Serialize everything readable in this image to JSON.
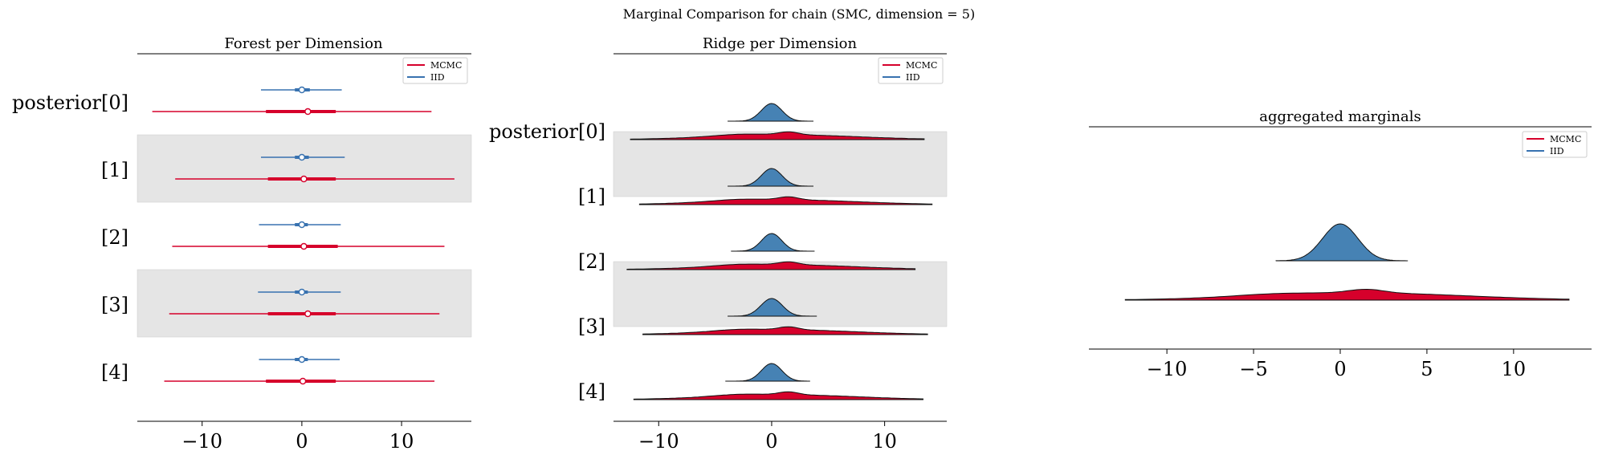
{
  "figure": {
    "suptitle": "Marginal Comparison for chain (SMC, dimension = 5)"
  },
  "colors": {
    "mcmc": "#d6002b",
    "iid": "#3872b0",
    "iid_fill": "#4682b4",
    "band": "#e5e5e5"
  },
  "legend": {
    "items": [
      "MCMC",
      "IID"
    ]
  },
  "y_labels": [
    "posterior[0]",
    "[1]",
    "[2]",
    "[3]",
    "[4]"
  ],
  "chart_data": [
    {
      "type": "forest",
      "title": "Forest per Dimension",
      "xlim": [
        -16.5,
        17
      ],
      "xticks": [
        -10,
        0,
        10
      ],
      "xtick_labels": [
        "−10",
        "0",
        "10"
      ],
      "series": [
        {
          "name": "MCMC",
          "rows": [
            {
              "label": "posterior[0]",
              "median": 0.6,
              "iqr": [
                -3.6,
                3.4
              ],
              "range": [
                -15.0,
                13.0
              ]
            },
            {
              "label": "[1]",
              "median": 0.2,
              "iqr": [
                -3.4,
                3.4
              ],
              "range": [
                -12.7,
                15.3
              ]
            },
            {
              "label": "[2]",
              "median": 0.2,
              "iqr": [
                -3.4,
                3.6
              ],
              "range": [
                -13.0,
                14.3
              ]
            },
            {
              "label": "[3]",
              "median": 0.6,
              "iqr": [
                -3.4,
                3.4
              ],
              "range": [
                -13.3,
                13.8
              ]
            },
            {
              "label": "[4]",
              "median": 0.1,
              "iqr": [
                -3.6,
                3.4
              ],
              "range": [
                -13.8,
                13.3
              ]
            }
          ]
        },
        {
          "name": "IID",
          "rows": [
            {
              "label": "posterior[0]",
              "median": 0.0,
              "iqr": [
                -0.7,
                0.8
              ],
              "range": [
                -4.1,
                4.0
              ]
            },
            {
              "label": "[1]",
              "median": 0.0,
              "iqr": [
                -0.7,
                0.7
              ],
              "range": [
                -4.1,
                4.3
              ]
            },
            {
              "label": "[2]",
              "median": 0.0,
              "iqr": [
                -0.7,
                0.6
              ],
              "range": [
                -4.3,
                3.9
              ]
            },
            {
              "label": "[3]",
              "median": 0.0,
              "iqr": [
                -0.7,
                0.6
              ],
              "range": [
                -4.4,
                3.9
              ]
            },
            {
              "label": "[4]",
              "median": 0.0,
              "iqr": [
                -0.7,
                0.6
              ],
              "range": [
                -4.3,
                3.8
              ]
            }
          ]
        }
      ]
    },
    {
      "type": "ridge",
      "title": "Ridge per Dimension",
      "xlim": [
        -14,
        15.5
      ],
      "xticks": [
        -10,
        0,
        10
      ],
      "xtick_labels": [
        "−10",
        "0",
        "10"
      ],
      "series": [
        {
          "name": "IID",
          "rows": [
            {
              "label": "posterior[0]",
              "range": [
                -3.9,
                3.7
              ]
            },
            {
              "label": "[1]",
              "range": [
                -3.9,
                3.7
              ]
            },
            {
              "label": "[2]",
              "range": [
                -3.6,
                3.8
              ]
            },
            {
              "label": "[3]",
              "range": [
                -3.9,
                4.0
              ]
            },
            {
              "label": "[4]",
              "range": [
                -4.1,
                3.4
              ]
            }
          ]
        },
        {
          "name": "MCMC",
          "rows": [
            {
              "label": "posterior[0]",
              "range": [
                -12.5,
                13.5
              ]
            },
            {
              "label": "[1]",
              "range": [
                -11.7,
                14.2
              ]
            },
            {
              "label": "[2]",
              "range": [
                -12.8,
                12.7
              ]
            },
            {
              "label": "[3]",
              "range": [
                -11.4,
                13.8
              ]
            },
            {
              "label": "[4]",
              "range": [
                -12.2,
                13.4
              ]
            }
          ]
        }
      ]
    },
    {
      "type": "ridge",
      "title": "aggregated marginals",
      "xlim": [
        -14.5,
        14.5
      ],
      "xticks": [
        -10,
        -5,
        0,
        5,
        10
      ],
      "xtick_labels": [
        "−10",
        "−5",
        "0",
        "5",
        "10"
      ],
      "series": [
        {
          "name": "IID",
          "range": [
            -3.7,
            3.9
          ]
        },
        {
          "name": "MCMC",
          "range": [
            -12.4,
            13.2
          ]
        }
      ]
    }
  ]
}
